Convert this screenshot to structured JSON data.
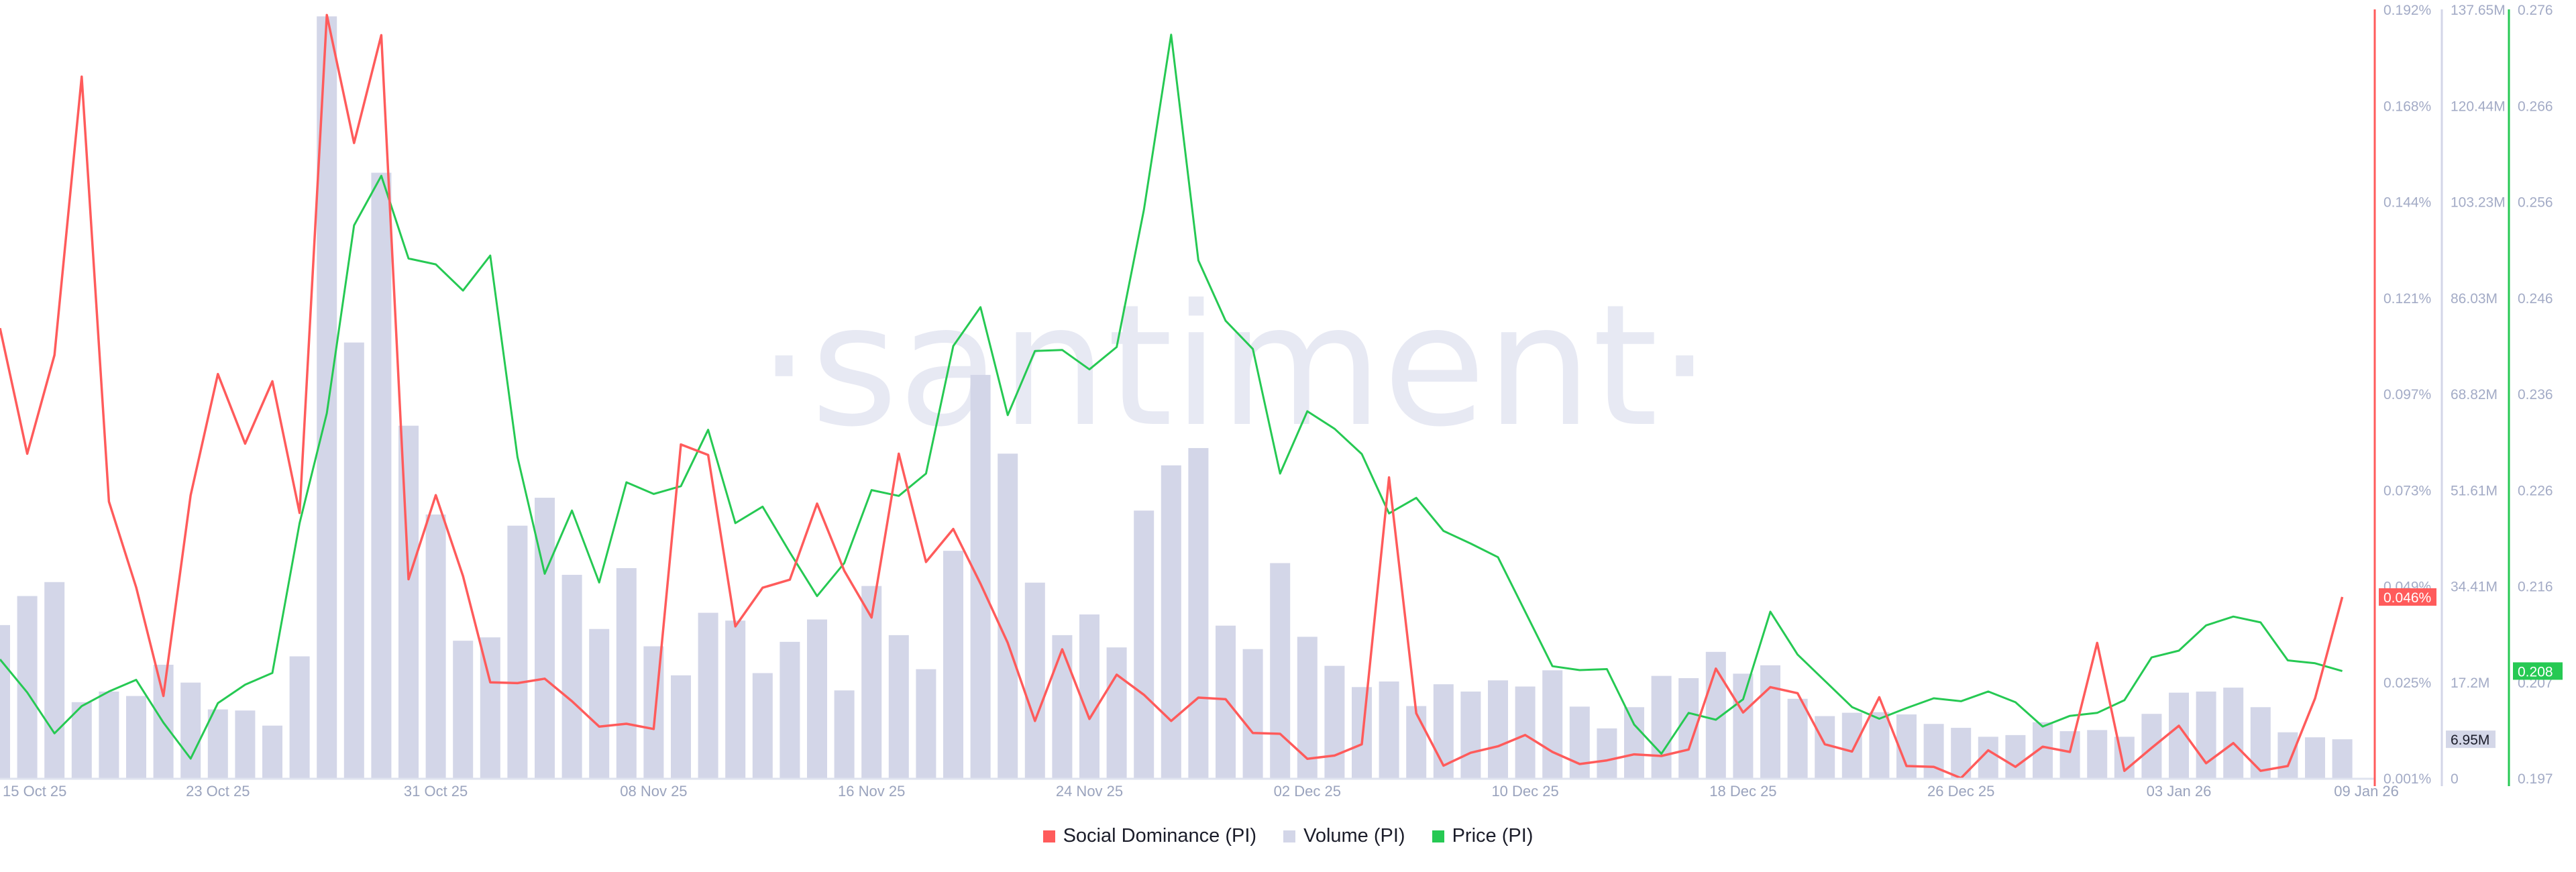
{
  "chart_data": {
    "type": "bar+line",
    "watermark": "·santiment·",
    "x": [
      "2025-10-15",
      "2025-10-16",
      "2025-10-17",
      "2025-10-18",
      "2025-10-19",
      "2025-10-20",
      "2025-10-21",
      "2025-10-22",
      "2025-10-23",
      "2025-10-24",
      "2025-10-25",
      "2025-10-26",
      "2025-10-27",
      "2025-10-28",
      "2025-10-29",
      "2025-10-30",
      "2025-10-31",
      "2025-11-01",
      "2025-11-02",
      "2025-11-03",
      "2025-11-04",
      "2025-11-05",
      "2025-11-06",
      "2025-11-07",
      "2025-11-08",
      "2025-11-09",
      "2025-11-10",
      "2025-11-11",
      "2025-11-12",
      "2025-11-13",
      "2025-11-14",
      "2025-11-15",
      "2025-11-16",
      "2025-11-17",
      "2025-11-18",
      "2025-11-19",
      "2025-11-20",
      "2025-11-21",
      "2025-11-22",
      "2025-11-23",
      "2025-11-24",
      "2025-11-25",
      "2025-11-26",
      "2025-11-27",
      "2025-11-28",
      "2025-11-29",
      "2025-11-30",
      "2025-12-01",
      "2025-12-02",
      "2025-12-03",
      "2025-12-04",
      "2025-12-05",
      "2025-12-06",
      "2025-12-07",
      "2025-12-08",
      "2025-12-09",
      "2025-12-10",
      "2025-12-11",
      "2025-12-12",
      "2025-12-13",
      "2025-12-14",
      "2025-12-15",
      "2025-12-16",
      "2025-12-17",
      "2025-12-18",
      "2025-12-19",
      "2025-12-20",
      "2025-12-21",
      "2025-12-22",
      "2025-12-23",
      "2025-12-24",
      "2025-12-25",
      "2025-12-26",
      "2025-12-27",
      "2025-12-28",
      "2025-12-29",
      "2025-12-30",
      "2025-12-31",
      "2026-01-01",
      "2026-01-02",
      "2026-01-03",
      "2026-01-04",
      "2026-01-05",
      "2026-01-06",
      "2026-01-07",
      "2026-01-08",
      "2026-01-09"
    ],
    "x_tick_labels": [
      {
        "date": "2025-10-15",
        "label": "15 Oct 25"
      },
      {
        "date": "2025-10-23",
        "label": "23 Oct 25"
      },
      {
        "date": "2025-10-31",
        "label": "31 Oct 25"
      },
      {
        "date": "2025-11-08",
        "label": "08 Nov 25"
      },
      {
        "date": "2025-11-16",
        "label": "16 Nov 25"
      },
      {
        "date": "2025-11-24",
        "label": "24 Nov 25"
      },
      {
        "date": "2025-12-02",
        "label": "02 Dec 25"
      },
      {
        "date": "2025-12-10",
        "label": "10 Dec 25"
      },
      {
        "date": "2025-12-18",
        "label": "18 Dec 25"
      },
      {
        "date": "2025-12-26",
        "label": "26 Dec 25"
      },
      {
        "date": "2026-01-03",
        "label": "03 Jan 26"
      },
      {
        "date": "2026-01-09",
        "label": "09 Jan 26"
      }
    ],
    "grid": false,
    "legend_position": "bottom-center",
    "series": [
      {
        "name": "Social Dominance (PI)",
        "kind": "line",
        "color": "#ff5b5b",
        "unit": "%",
        "axis": {
          "range": [
            0.001,
            0.192
          ],
          "ticks": [
            "0.001%",
            "0.025%",
            "0.049%",
            "0.073%",
            "0.097%",
            "0.121%",
            "0.144%",
            "0.168%",
            "0.192%"
          ]
        },
        "last_value_label": "0.046%",
        "values": [
          0.1128,
          0.0816,
          0.1061,
          0.1753,
          0.0697,
          0.0484,
          0.0214,
          0.0713,
          0.1014,
          0.0841,
          0.0996,
          0.0669,
          0.1906,
          0.1588,
          0.1856,
          0.0504,
          0.0713,
          0.0512,
          0.0248,
          0.0246,
          0.0257,
          0.0201,
          0.0138,
          0.0145,
          0.0132,
          0.0839,
          0.0813,
          0.0387,
          0.0483,
          0.0503,
          0.0692,
          0.0525,
          0.0409,
          0.0816,
          0.0547,
          0.0629,
          0.0493,
          0.0346,
          0.0152,
          0.033,
          0.0157,
          0.0267,
          0.0217,
          0.0152,
          0.021,
          0.0206,
          0.0122,
          0.012,
          0.0058,
          0.0066,
          0.0094,
          0.0757,
          0.0171,
          0.0041,
          0.0073,
          0.0089,
          0.0117,
          0.0075,
          0.0045,
          0.0054,
          0.0069,
          0.0065,
          0.0081,
          0.0282,
          0.0173,
          0.0236,
          0.0221,
          0.0094,
          0.0076,
          0.0211,
          0.004,
          0.0038,
          0.001,
          0.0079,
          0.0038,
          0.0088,
          0.0075,
          0.0346,
          0.0028,
          0.0085,
          0.014,
          0.0047,
          0.0097,
          0.0028,
          0.004,
          0.0208,
          0.046
        ]
      },
      {
        "name": "Volume (PI)",
        "kind": "bar",
        "color": "#d3d6e8",
        "unit": "M",
        "axis": {
          "range": [
            0,
            137.65
          ],
          "ticks": [
            "0",
            "17.2M",
            "34.41M",
            "51.61M",
            "68.82M",
            "86.03M",
            "103.23M",
            "120.44M",
            "137.65M"
          ]
        },
        "last_value_label": "6.95M",
        "values": [
          27.4,
          32.6,
          35.1,
          13.6,
          15.5,
          14.7,
          20.3,
          17.1,
          12.3,
          12.1,
          9.4,
          21.8,
          136.4,
          78.0,
          108.4,
          63.1,
          47.2,
          24.6,
          25.2,
          45.2,
          50.2,
          36.4,
          26.7,
          37.6,
          23.6,
          18.4,
          29.6,
          28.2,
          18.8,
          24.4,
          28.4,
          15.7,
          34.4,
          25.6,
          19.5,
          40.7,
          72.2,
          58.1,
          35.0,
          25.6,
          29.3,
          23.4,
          47.9,
          56.0,
          59.1,
          27.3,
          23.1,
          38.5,
          25.3,
          20.1,
          16.3,
          17.3,
          12.9,
          16.8,
          15.5,
          17.5,
          16.4,
          19.3,
          12.8,
          8.9,
          12.7,
          18.3,
          17.9,
          22.6,
          18.7,
          20.2,
          14.2,
          11.1,
          11.7,
          11.8,
          11.4,
          9.7,
          9.0,
          7.4,
          7.7,
          10.0,
          8.4,
          8.6,
          7.4,
          11.5,
          15.3,
          15.5,
          16.2,
          12.7,
          8.2,
          7.3,
          6.95
        ]
      },
      {
        "name": "Price (PI)",
        "kind": "line",
        "color": "#26c953",
        "unit": "USD",
        "axis": {
          "range": [
            0.197,
            0.276
          ],
          "ticks": [
            "0.197",
            "0.207",
            "0.216",
            "0.226",
            "0.236",
            "0.246",
            "0.256",
            "0.266",
            "0.276"
          ]
        },
        "last_value_label": "0.208",
        "values": [
          0.2092,
          0.2058,
          0.2016,
          0.2044,
          0.2059,
          0.2071,
          0.2027,
          0.199,
          0.2047,
          0.2066,
          0.2078,
          0.2232,
          0.2345,
          0.2538,
          0.2589,
          0.2504,
          0.2498,
          0.2471,
          0.2507,
          0.23,
          0.218,
          0.2245,
          0.2171,
          0.2274,
          0.2262,
          0.227,
          0.2328,
          0.2232,
          0.2249,
          0.2202,
          0.2157,
          0.2191,
          0.2266,
          0.226,
          0.2283,
          0.2414,
          0.2454,
          0.2343,
          0.2409,
          0.241,
          0.239,
          0.2413,
          0.2554,
          0.2734,
          0.2502,
          0.244,
          0.2411,
          0.2283,
          0.2347,
          0.2329,
          0.2303,
          0.2242,
          0.2258,
          0.2224,
          0.2211,
          0.2197,
          0.2141,
          0.2085,
          0.2081,
          0.2082,
          0.2025,
          0.1995,
          0.2037,
          0.203,
          0.2051,
          0.2141,
          0.2097,
          0.207,
          0.2043,
          0.2031,
          0.2042,
          0.2052,
          0.2049,
          0.2059,
          0.2048,
          0.2023,
          0.2034,
          0.2037,
          0.205,
          0.2094,
          0.2101,
          0.2127,
          0.2136,
          0.213,
          0.2091,
          0.2088,
          0.208
        ]
      }
    ]
  },
  "legend": {
    "items": [
      {
        "label": "Social Dominance (PI)",
        "color": "#ff5b5b"
      },
      {
        "label": "Volume (PI)",
        "color": "#d3d6e8"
      },
      {
        "label": "Price (PI)",
        "color": "#26c953"
      }
    ]
  }
}
